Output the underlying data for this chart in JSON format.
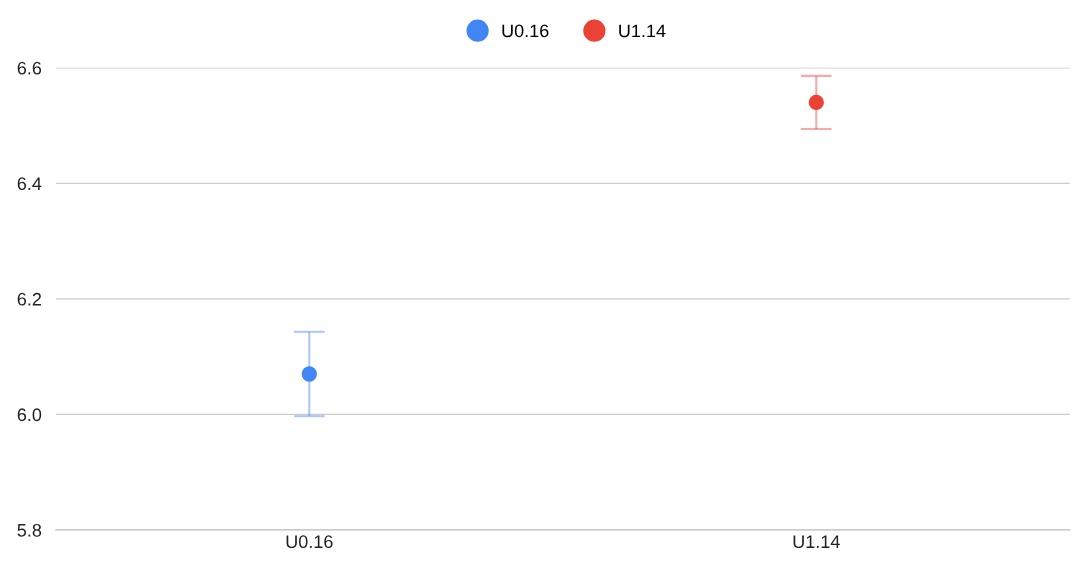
{
  "chart_data": {
    "type": "scatter",
    "categories": [
      "U0.16",
      "U1.14"
    ],
    "series": [
      {
        "name": "U0.16",
        "color": "#4285f4",
        "values": [
          6.07,
          null
        ],
        "errors": [
          0.073,
          null
        ]
      },
      {
        "name": "U1.14",
        "color": "#ea4335",
        "values": [
          null,
          6.54
        ],
        "errors": [
          null,
          0.046
        ]
      }
    ],
    "ylim": [
      5.8,
      6.6
    ],
    "yticks": [
      5.8,
      {
        "value": 6.0,
        "label": "6.0"
      },
      6.2,
      6.4,
      6.6
    ],
    "grid": "y",
    "legend": "top",
    "marker": "circle"
  }
}
